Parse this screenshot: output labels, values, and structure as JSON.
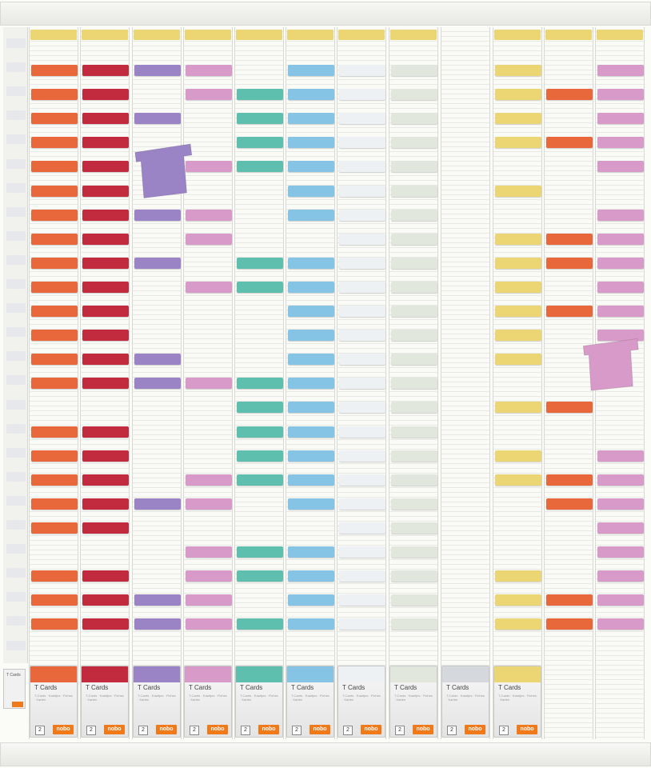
{
  "scene": "T-card planning board",
  "palette": {
    "yellow": "#ecd674",
    "orange": "#e8683b",
    "red": "#c22a3e",
    "purple": "#9a84c6",
    "pink": "#d89ac8",
    "teal": "#5fbfae",
    "blue": "#86c4e6",
    "white": "#eef1f4",
    "mint": "#e1e7dd",
    "grey": "#d5d8dc",
    "index": "#e6e8ec"
  },
  "columns": [
    {
      "header": "yellow",
      "color": "orange",
      "rows": [
        1,
        2,
        3,
        4,
        5,
        6,
        7,
        8,
        9,
        10,
        11,
        12,
        13,
        14,
        16,
        17,
        18,
        19,
        20,
        22,
        23,
        24
      ],
      "dispenser": "orange"
    },
    {
      "header": "yellow",
      "color": "red",
      "rows": [
        1,
        2,
        3,
        4,
        5,
        6,
        7,
        8,
        9,
        10,
        11,
        12,
        13,
        14,
        16,
        17,
        18,
        19,
        20,
        22,
        23,
        24
      ],
      "dispenser": "red"
    },
    {
      "header": "yellow",
      "color": "purple",
      "rows": [
        1,
        3,
        7,
        9,
        13,
        14,
        19,
        23,
        24
      ],
      "dispenser": "purple"
    },
    {
      "header": "yellow",
      "color": "pink",
      "rows": [
        1,
        2,
        5,
        7,
        8,
        10,
        14,
        18,
        19,
        21,
        22,
        23,
        24
      ],
      "dispenser": "pink"
    },
    {
      "header": "yellow",
      "color": "teal",
      "rows": [
        2,
        3,
        4,
        5,
        9,
        10,
        14,
        15,
        16,
        17,
        18,
        21,
        22,
        24
      ],
      "dispenser": "teal"
    },
    {
      "header": "yellow",
      "color": "blue",
      "rows": [
        1,
        2,
        3,
        4,
        5,
        6,
        7,
        9,
        10,
        11,
        12,
        13,
        14,
        15,
        16,
        17,
        18,
        19,
        21,
        22,
        23,
        24
      ],
      "dispenser": "blue"
    },
    {
      "header": "yellow",
      "color": "white",
      "rows": [
        1,
        2,
        3,
        4,
        5,
        6,
        7,
        8,
        9,
        10,
        11,
        12,
        13,
        14,
        15,
        16,
        17,
        18,
        19,
        20,
        21,
        22,
        23,
        24
      ],
      "dispenser": "white"
    },
    {
      "header": "yellow",
      "color": "mint",
      "rows": [
        1,
        2,
        3,
        4,
        5,
        6,
        7,
        8,
        9,
        10,
        11,
        12,
        13,
        14,
        15,
        16,
        17,
        18,
        19,
        20,
        21,
        22,
        23,
        24
      ],
      "dispenser": "mint"
    },
    {
      "header": "none",
      "color": "grey",
      "rows": [],
      "dispenser": "grey"
    },
    {
      "header": "yellow",
      "color": "yellow",
      "rows": [
        1,
        2,
        3,
        4,
        6,
        8,
        9,
        10,
        11,
        12,
        13,
        15,
        17,
        18,
        22,
        23,
        24
      ],
      "dispenser": "yellow"
    },
    {
      "header": "yellow",
      "color": "orange",
      "rows": [
        2,
        4,
        8,
        9,
        11,
        15,
        18,
        19,
        23,
        24
      ],
      "dispenser": "none"
    },
    {
      "header": "yellow",
      "color": "pink",
      "rows": [
        1,
        2,
        3,
        4,
        5,
        7,
        8,
        9,
        10,
        11,
        12,
        17,
        18,
        19,
        20,
        21,
        22,
        23,
        24
      ],
      "dispenser": "none"
    }
  ],
  "loose_cards": [
    {
      "name": "loose-purple-card",
      "color": "purple"
    },
    {
      "name": "loose-pink-card",
      "color": "pink"
    }
  ],
  "dispenser_text": {
    "title": "T Cards",
    "fine_print": "T-Cards · Kaartjes · Fiches · Karten",
    "number": "2",
    "logo": "nobo"
  },
  "side_box": {
    "title": "T Cards"
  }
}
